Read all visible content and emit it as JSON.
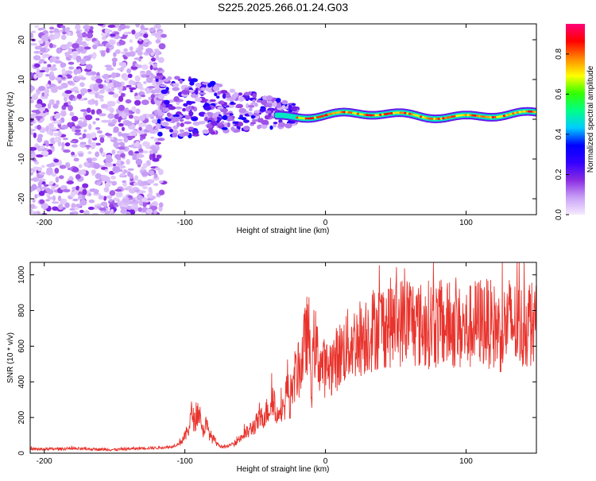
{
  "figure_title": "S225.2025.266.01.24.G03",
  "colors": {
    "snr_line": "#e8332c",
    "axis": "#000000",
    "background": "#ffffff"
  },
  "chart_data": [
    {
      "type": "heatmap",
      "title": "S225.2025.266.01.24.G03",
      "xlabel": "Height of straight line (km)",
      "ylabel": "Frequency (Hz)",
      "xlim": [
        -210,
        150
      ],
      "ylim": [
        -24,
        24
      ],
      "xticks": [
        -200,
        -100,
        0,
        100
      ],
      "yticks": [
        -20,
        -10,
        0,
        10,
        20
      ],
      "colorbar": {
        "label": "Normalized spectral amplitude",
        "range": [
          0.0,
          0.95
        ],
        "ticks": [
          0.0,
          0.2,
          0.4,
          0.6,
          0.8
        ],
        "tick_labels": [
          "0.0",
          "0.2",
          "0.4",
          "0.6",
          "0.8"
        ],
        "colormap": [
          "#f6eafe",
          "#c8a0f6",
          "#8a2be2",
          "#3300ff",
          "#0000ff",
          "#00ccff",
          "#00ff88",
          "#33ff00",
          "#ffff00",
          "#ff8800",
          "#ff0000",
          "#ff0077"
        ]
      },
      "description_regions": [
        {
          "x_range": [
            -210,
            -120
          ],
          "freq_range": [
            -24,
            24
          ],
          "amplitude": [
            0.02,
            0.15
          ]
        },
        {
          "x_range": [
            -120,
            -20
          ],
          "freq_range": [
            -12,
            8
          ],
          "amplitude": [
            0.1,
            0.35
          ]
        },
        {
          "x_range": [
            -30,
            150
          ],
          "freq_range": [
            -1,
            3
          ],
          "amplitude": [
            0.5,
            0.95
          ]
        }
      ]
    },
    {
      "type": "line",
      "xlabel": "Height of straight line (km)",
      "ylabel": "SNR (10 * v/v)",
      "xlim": [
        -210,
        150
      ],
      "ylim": [
        0,
        1070
      ],
      "xticks": [
        -200,
        -100,
        0,
        100
      ],
      "yticks": [
        0,
        200,
        400,
        600,
        800,
        1000
      ],
      "series": [
        {
          "name": "SNR",
          "x": [
            -210,
            -180,
            -150,
            -130,
            -120,
            -110,
            -105,
            -100,
            -97,
            -95,
            -93,
            -90,
            -88,
            -85,
            -82,
            -80,
            -75,
            -70,
            -65,
            -60,
            -55,
            -50,
            -45,
            -40,
            -37,
            -35,
            -32,
            -30,
            -27,
            -25,
            -22,
            -20,
            -18,
            -15,
            -12,
            -10,
            -8,
            -5,
            0,
            5,
            10,
            15,
            20,
            25,
            30,
            35,
            40,
            45,
            50,
            55,
            60,
            65,
            70,
            75,
            80,
            85,
            90,
            95,
            100,
            105,
            110,
            115,
            120,
            125,
            130,
            135,
            140,
            145,
            150
          ],
          "values": [
            22,
            25,
            20,
            28,
            30,
            35,
            50,
            90,
            150,
            230,
            170,
            250,
            120,
            160,
            100,
            80,
            40,
            35,
            60,
            90,
            120,
            160,
            200,
            250,
            340,
            180,
            300,
            220,
            400,
            260,
            430,
            450,
            470,
            600,
            700,
            350,
            640,
            520,
            470,
            500,
            550,
            600,
            620,
            650,
            680,
            700,
            720,
            730,
            730,
            740,
            760,
            720,
            710,
            730,
            720,
            710,
            720,
            700,
            690,
            720,
            740,
            730,
            710,
            680,
            740,
            720,
            700,
            740,
            700
          ]
        }
      ]
    }
  ]
}
